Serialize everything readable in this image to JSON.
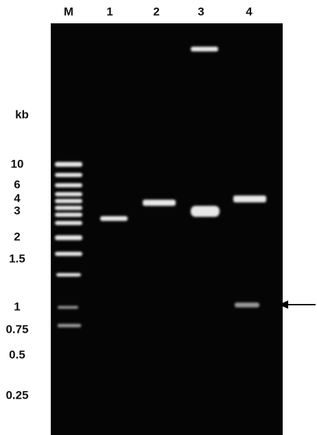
{
  "lanes": [
    "M",
    "1",
    "2",
    "3",
    "4"
  ],
  "size_unit": "kb",
  "sizes": [
    "10",
    "6",
    "4",
    "3",
    "2",
    "1.5",
    "1",
    "0.75",
    "0.5",
    "0.25"
  ]
}
